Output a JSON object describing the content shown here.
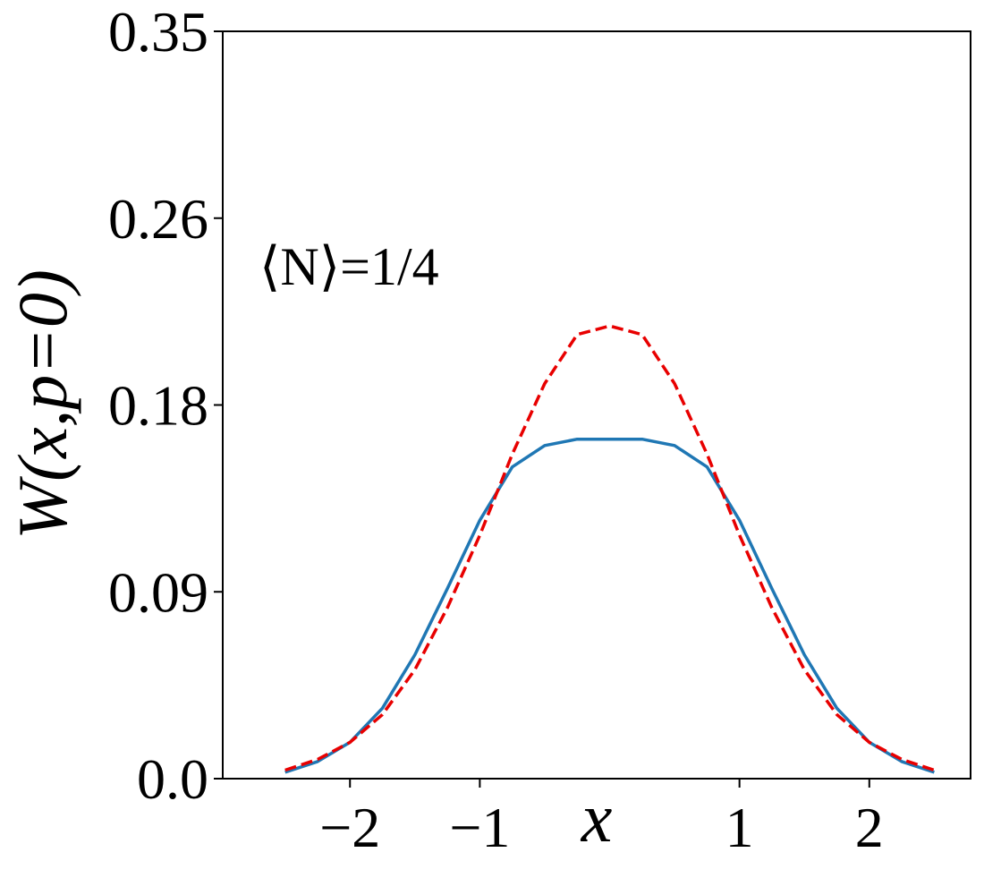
{
  "chart_data": {
    "type": "line",
    "xlabel": "x",
    "ylabel": "W(x,p=0)",
    "annotation": "⟨N⟩=1/4",
    "xlim": [
      -2.98,
      2.78
    ],
    "ylim": [
      0.0,
      0.35
    ],
    "xticks": [
      -2,
      -1,
      1,
      2
    ],
    "xtick_labels": [
      "−2",
      "−1",
      "1",
      "2"
    ],
    "yticks": [
      0.0,
      0.0875,
      0.175,
      0.2625,
      0.35
    ],
    "ytick_labels": [
      "0.0",
      "0.09",
      "0.18",
      "0.26",
      "0.35"
    ],
    "grid": false,
    "series": [
      {
        "style": "solid",
        "color": "#1f77b4",
        "x": [
          -2.5,
          -2.25,
          -2.0,
          -1.75,
          -1.5,
          -1.25,
          -1.0,
          -0.75,
          -0.5,
          -0.25,
          0.0,
          0.25,
          0.5,
          0.75,
          1.0,
          1.25,
          1.5,
          1.75,
          2.0,
          2.25,
          2.5
        ],
        "y": [
          0.003,
          0.008,
          0.017,
          0.033,
          0.058,
          0.089,
          0.121,
          0.146,
          0.156,
          0.159,
          0.159,
          0.159,
          0.156,
          0.146,
          0.121,
          0.089,
          0.058,
          0.033,
          0.017,
          0.008,
          0.003
        ]
      },
      {
        "style": "dashed",
        "color": "#e80000",
        "x": [
          -2.5,
          -2.25,
          -2.0,
          -1.75,
          -1.5,
          -1.25,
          -1.0,
          -0.75,
          -0.5,
          -0.25,
          0.0,
          0.25,
          0.5,
          0.75,
          1.0,
          1.25,
          1.5,
          1.75,
          2.0,
          2.25,
          2.5
        ],
        "y": [
          0.004,
          0.009,
          0.017,
          0.03,
          0.051,
          0.08,
          0.114,
          0.152,
          0.185,
          0.208,
          0.212,
          0.208,
          0.185,
          0.152,
          0.114,
          0.08,
          0.051,
          0.03,
          0.017,
          0.009,
          0.004
        ]
      }
    ]
  }
}
